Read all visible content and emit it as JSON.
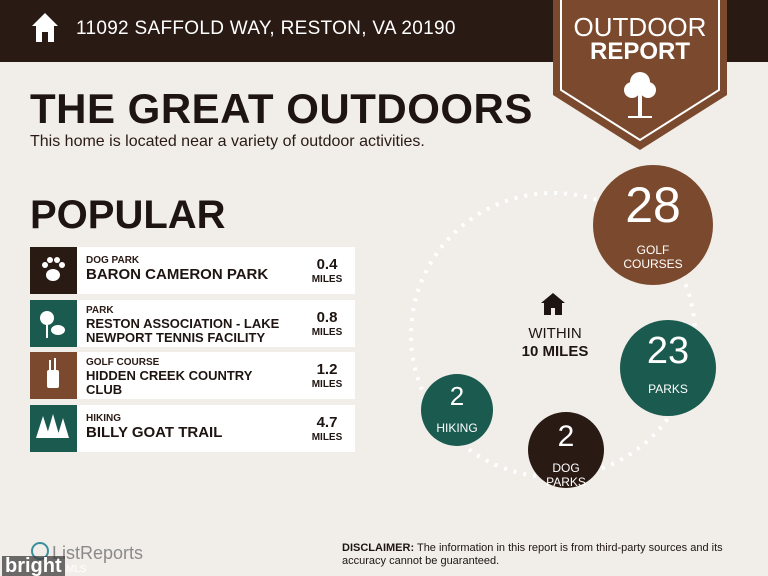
{
  "header": {
    "address": "11092 SAFFOLD WAY, RESTON, VA 20190",
    "badge_line1": "OUTDOOR",
    "badge_line2": "REPORT"
  },
  "title": "THE GREAT OUTDOORS",
  "subtitle": "This home is located near a variety of outdoor activities.",
  "popular": {
    "heading": "POPULAR",
    "items": [
      {
        "category": "DOG PARK",
        "name": "BARON CAMERON PARK",
        "distance": "0.4",
        "unit": "MILES"
      },
      {
        "category": "PARK",
        "name": "RESTON ASSOCIATION - LAKE NEWPORT TENNIS FACILITY",
        "distance": "0.8",
        "unit": "MILES"
      },
      {
        "category": "GOLF COURSE",
        "name": "HIDDEN CREEK COUNTRY CLUB",
        "distance": "1.2",
        "unit": "MILES"
      },
      {
        "category": "HIKING",
        "name": "BILLY GOAT TRAIL",
        "distance": "4.7",
        "unit": "MILES"
      }
    ]
  },
  "radius": {
    "line1": "WITHIN",
    "line2": "10 MILES",
    "circles": [
      {
        "count": "28",
        "label": "GOLF COURSES"
      },
      {
        "count": "23",
        "label": "PARKS"
      },
      {
        "count": "2",
        "label": "HIKING"
      },
      {
        "count": "2",
        "label": "DOG PARKS"
      }
    ]
  },
  "disclaimer": {
    "label": "DISCLAIMER:",
    "text": "The information in this report is from third-party sources and its accuracy cannot be guaranteed."
  },
  "footer": {
    "brand": "ListReports",
    "mls_brand": "bright",
    "mls_suffix": "MLS"
  }
}
